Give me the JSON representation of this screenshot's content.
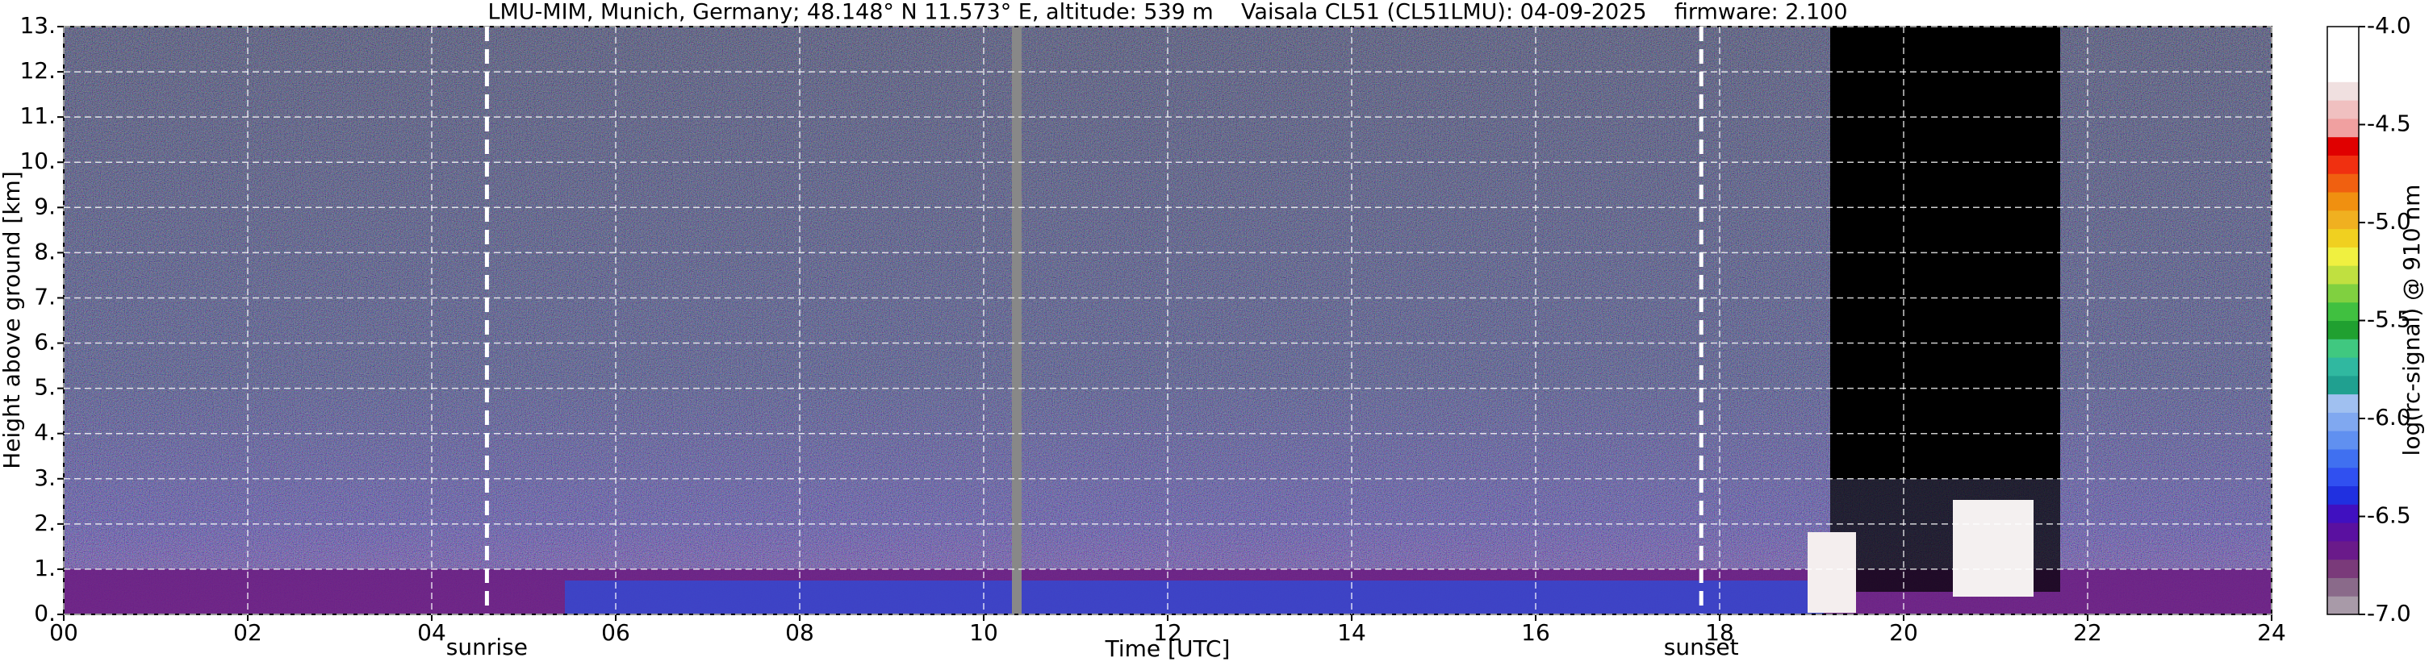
{
  "chart_data": {
    "type": "heatmap",
    "title": "LMU-MIM, Munich, Germany; 48.148° N 11.573° E, altitude: 539 m    Vaisala CL51 (CL51LMU): 04-09-2025    firmware: 2.100",
    "xlabel": "Time [UTC]",
    "ylabel": "Height above ground [km]",
    "xlim": [
      0,
      24
    ],
    "xticks": [
      {
        "value": 0,
        "label": "00"
      },
      {
        "value": 2,
        "label": "02"
      },
      {
        "value": 4,
        "label": "04"
      },
      {
        "value": 6,
        "label": "06"
      },
      {
        "value": 8,
        "label": "08"
      },
      {
        "value": 10,
        "label": "10"
      },
      12,
      14,
      16,
      18,
      20,
      22,
      24
    ],
    "ylim": [
      0,
      13
    ],
    "yticks": [
      {
        "value": 0,
        "label": "0."
      },
      {
        "value": 1,
        "label": "1."
      },
      {
        "value": 2,
        "label": "2."
      },
      {
        "value": 3,
        "label": "3."
      },
      {
        "value": 4,
        "label": "4."
      },
      {
        "value": 5,
        "label": "5."
      },
      {
        "value": 6,
        "label": "6."
      },
      {
        "value": 7,
        "label": "7."
      },
      {
        "value": 8,
        "label": "8."
      },
      {
        "value": 9,
        "label": "9."
      },
      {
        "value": 10,
        "label": "10."
      },
      {
        "value": 11,
        "label": "11."
      },
      {
        "value": 12,
        "label": "12."
      },
      {
        "value": 13,
        "label": "13."
      }
    ],
    "grid": true,
    "annotations": [
      {
        "x": 4.6,
        "text": "sunrise"
      },
      {
        "x": 17.8,
        "text": "sunset"
      }
    ],
    "colorbar": {
      "label": "log(rc-signal) @ 910 nm",
      "clim": [
        -7,
        -4
      ],
      "ticks": [
        {
          "value": -7,
          "label": "-7.0"
        },
        {
          "value": -6.5,
          "label": "-6.5"
        },
        {
          "value": -6,
          "label": "-6.0"
        },
        {
          "value": -5.5,
          "label": "-5.5"
        },
        {
          "value": -5,
          "label": "-5.0"
        },
        {
          "value": -4.5,
          "label": "-4.5"
        },
        {
          "value": -4,
          "label": "-4.0"
        }
      ],
      "colors": [
        "#a89aa8",
        "#8a6a8a",
        "#7a3a7a",
        "#6a1a8a",
        "#5a10a0",
        "#4010c0",
        "#2030e0",
        "#3050f0",
        "#4070f0",
        "#6090f0",
        "#80a8f0",
        "#a0c0f0",
        "#20a090",
        "#30b8a0",
        "#40c880",
        "#20a030",
        "#40c040",
        "#80d040",
        "#c0e040",
        "#f0f040",
        "#f0d020",
        "#f0b020",
        "#f09010",
        "#f06010",
        "#f03010",
        "#e00000",
        "#f0a0a0",
        "#f0c0c0",
        "#f0e0e0",
        "#ffffff",
        "#ffffff",
        "#ffffff"
      ]
    }
  }
}
